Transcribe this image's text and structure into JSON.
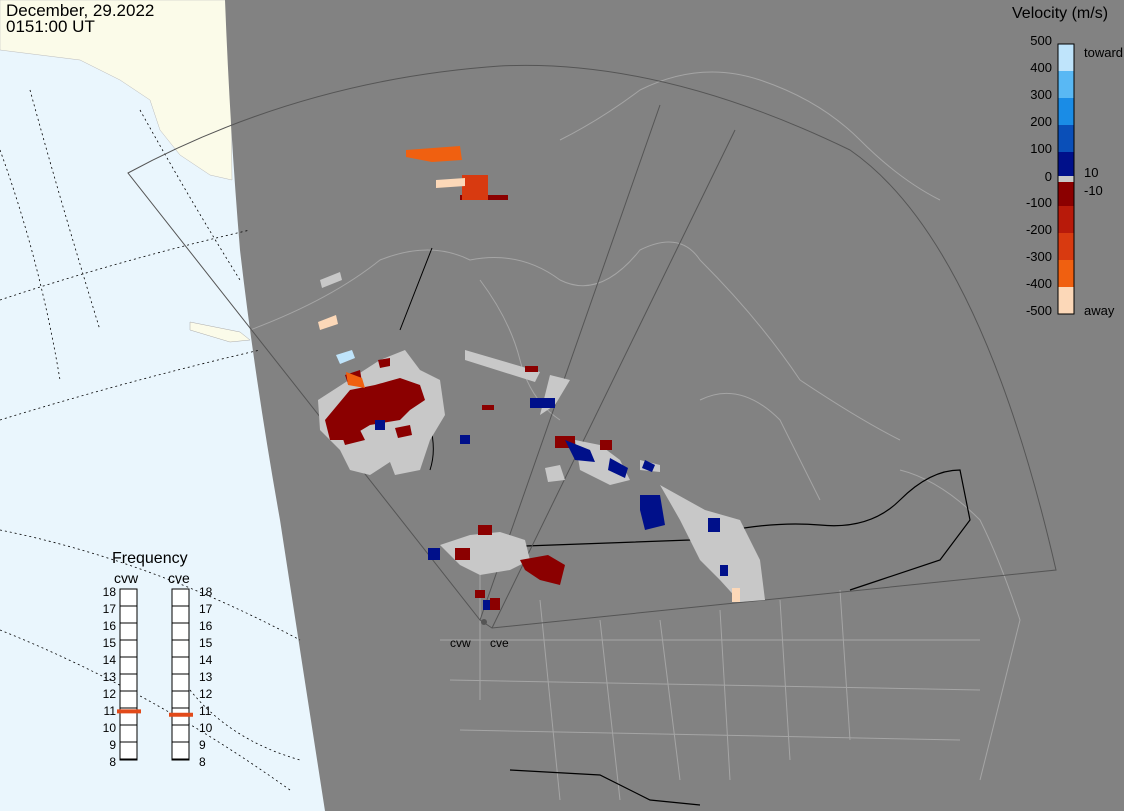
{
  "header": {
    "date": "December, 29.2022",
    "time": "0151:00 UT"
  },
  "colorbar": {
    "title": "Velocity (m/s)",
    "ticks": [
      "500",
      "400",
      "300",
      "200",
      "100",
      "10",
      "0",
      "-10",
      "-100",
      "-200",
      "-300",
      "-400",
      "-500"
    ],
    "toward_label": "toward",
    "away_label": "away"
  },
  "frequency_panel": {
    "title": "Frequency",
    "radars": [
      "cvw",
      "cve"
    ],
    "ticks": [
      "18",
      "17",
      "16",
      "15",
      "14",
      "13",
      "12",
      "11",
      "10",
      "9",
      "8"
    ],
    "cvw_mhz": 10.8,
    "cve_mhz": 10.6,
    "indicator_color": "#e24a1a"
  },
  "radar_sites": {
    "labels": [
      "cvw",
      "cve"
    ]
  },
  "colors": {
    "land": "#828282",
    "ocean": "#eaf6fd",
    "ice_land": "#fbfbe9",
    "ground_scatter": "#c8c8c8",
    "dark_red": "#8b0000",
    "dark_blue": "#00108a",
    "orange": "#f06010",
    "red_orange": "#d83a10",
    "peach": "#fcd8b8"
  }
}
